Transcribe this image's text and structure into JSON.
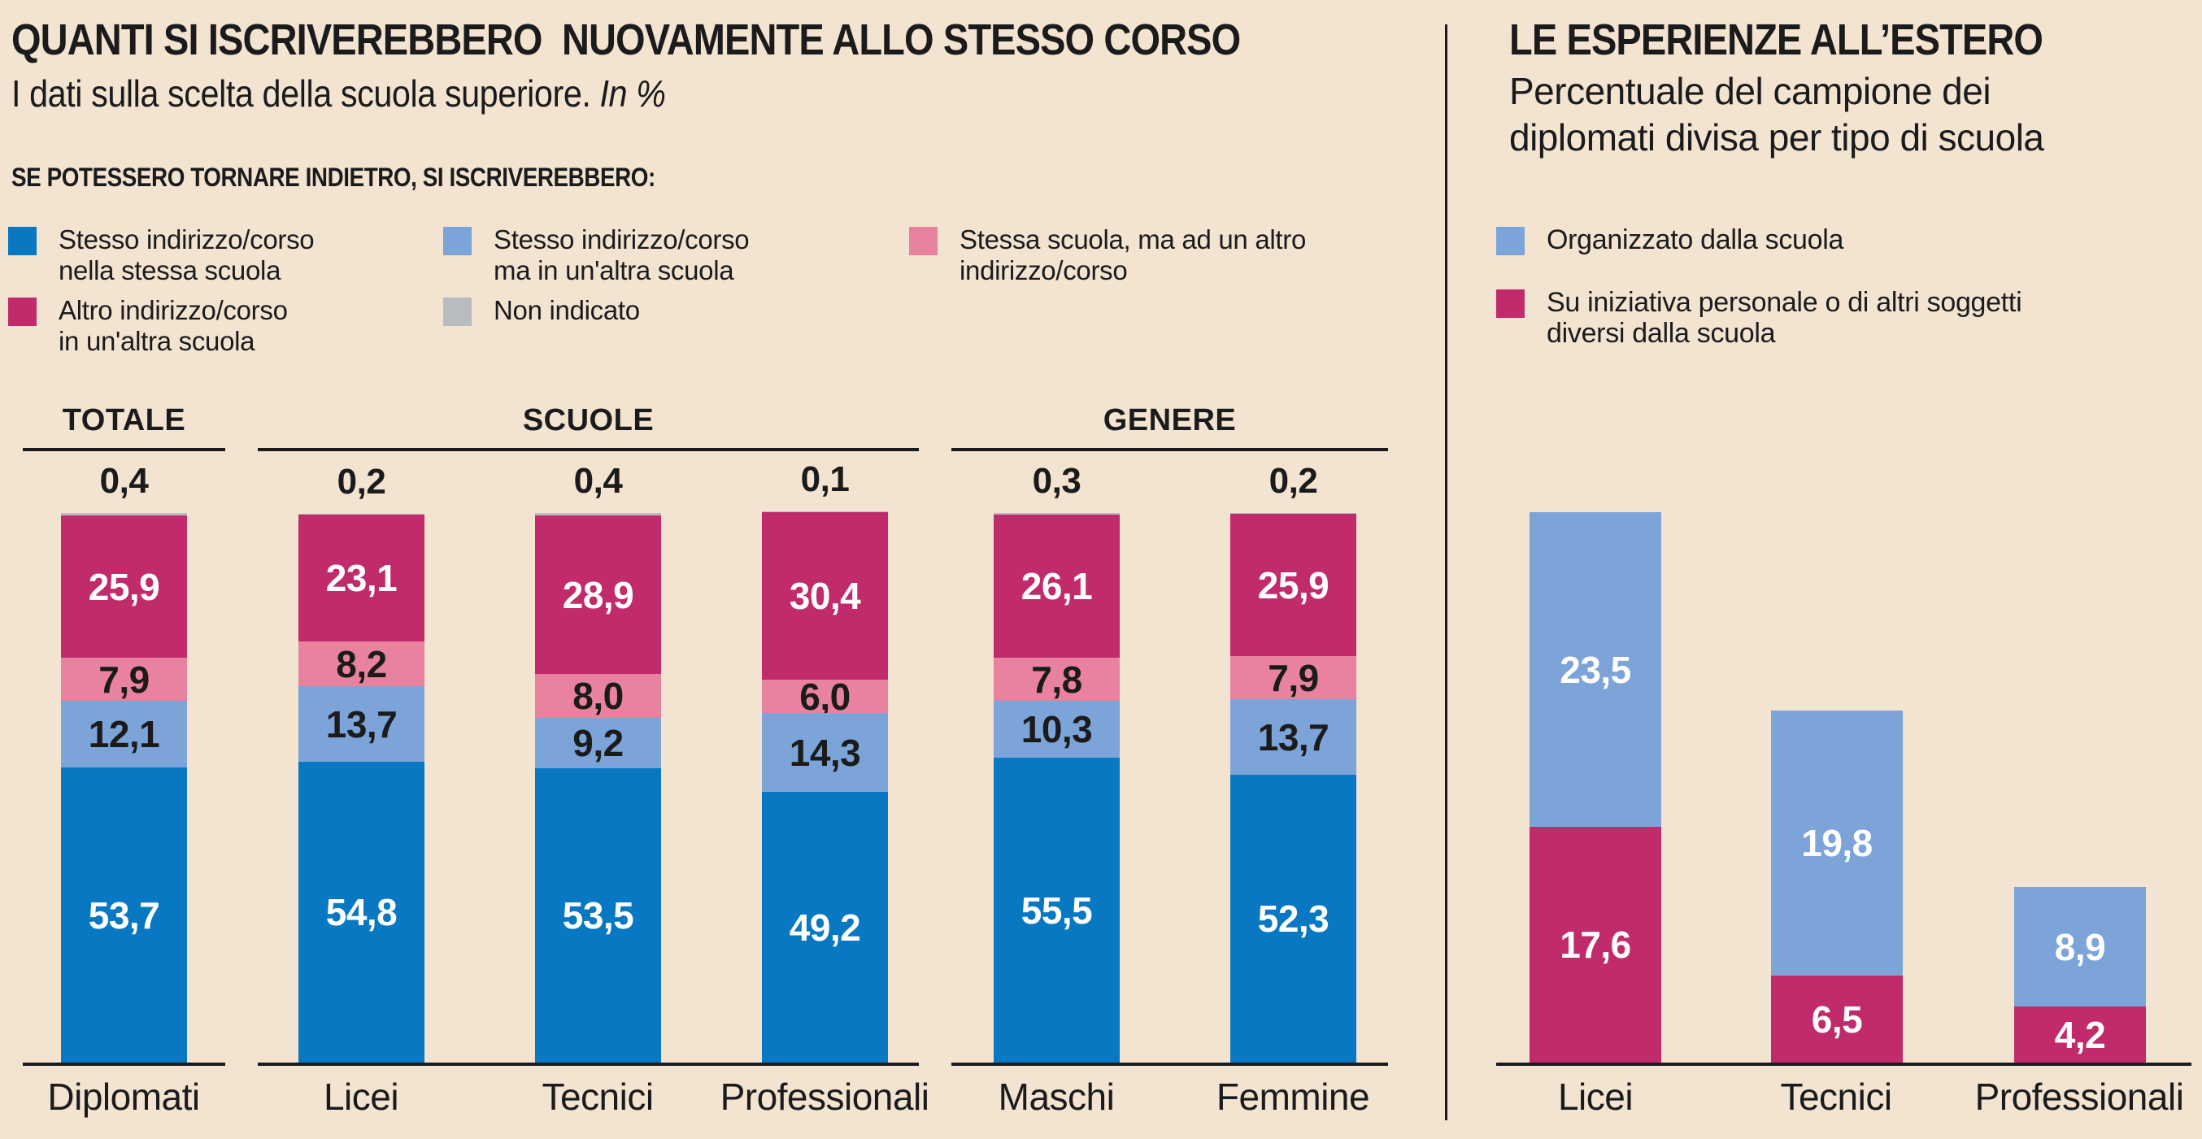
{
  "background_color": "#F3E3D1",
  "text_color": "#1B1B1B",
  "left_panel": {
    "title": "QUANTI SI ISCRIVEREBBERO  NUOVAMENTE ALLO STESSO CORSO",
    "subtitle": "I dati sulla scelta della scuola superiore.",
    "subtitle_note": "In %",
    "question": "SE POTESSERO TORNARE INDIETRO, SI ISCRIVEREBBERO:",
    "legend": [
      {
        "label": "Stesso indirizzo/corso\nnella stessa scuola",
        "color": "#0778C1"
      },
      {
        "label": "Stesso indirizzo/corso\nma in un'altra scuola",
        "color": "#7CA4D8"
      },
      {
        "label": "Stessa scuola, ma ad un altro\nindirizzo/corso",
        "color": "#E8829F"
      },
      {
        "label": "Altro indirizzo/corso\nin un'altra scuola",
        "color": "#C12B6B"
      },
      {
        "label": "Non indicato",
        "color": "#B9BCBE"
      }
    ],
    "groups": [
      {
        "label": "TOTALE"
      },
      {
        "label": "SCUOLE"
      },
      {
        "label": "GENERE"
      }
    ],
    "bars": [
      {
        "category": "Diplomati",
        "top": "0,4",
        "labels": {
          "magenta": "25,9",
          "pink": "7,9",
          "light_blue": "12,1",
          "blue": "53,7"
        }
      },
      {
        "category": "Licei",
        "top": "0,2",
        "labels": {
          "magenta": "23,1",
          "pink": "8,2",
          "light_blue": "13,7",
          "blue": "54,8"
        }
      },
      {
        "category": "Tecnici",
        "top": "0,4",
        "labels": {
          "magenta": "28,9",
          "pink": "8,0",
          "light_blue": "9,2",
          "blue": "53,5"
        }
      },
      {
        "category": "Professionali",
        "top": "0,1",
        "labels": {
          "magenta": "30,4",
          "pink": "6,0",
          "light_blue": "14,3",
          "blue": "49,2"
        }
      },
      {
        "category": "Maschi",
        "top": "0,3",
        "labels": {
          "magenta": "26,1",
          "pink": "7,8",
          "light_blue": "10,3",
          "blue": "55,5"
        }
      },
      {
        "category": "Femmine",
        "top": "0,2",
        "labels": {
          "magenta": "25,9",
          "pink": "7,9",
          "light_blue": "13,7",
          "blue": "52,3"
        }
      }
    ]
  },
  "right_panel": {
    "title": "LE ESPERIENZE ALL’ESTERO",
    "subtitle": "Percentuale del campione dei\ndiplomati divisa per tipo di scuola",
    "legend": [
      {
        "label": "Organizzato dalla scuola",
        "color": "#7CA4D8"
      },
      {
        "label": "Su iniziativa personale o di altri soggetti\ndiversi dalla scuola",
        "color": "#C12B6B"
      }
    ],
    "bars": [
      {
        "category": "Licei",
        "labels": {
          "school": "23,5",
          "personal": "17,6"
        }
      },
      {
        "category": "Tecnici",
        "labels": {
          "school": "19,8",
          "personal": "6,5"
        }
      },
      {
        "category": "Professionali",
        "labels": {
          "school": "8,9",
          "personal": "4,2"
        }
      }
    ]
  },
  "chart_data": [
    {
      "type": "bar",
      "subtype": "stacked-vertical",
      "title": "QUANTI SI ISCRIVEREBBERO NUOVAMENTE ALLO STESSO CORSO",
      "subtitle": "I dati sulla scelta della scuola superiore. In %",
      "unit": "%",
      "ylim": [
        0,
        100
      ],
      "grid": false,
      "legend_position": "top",
      "categories": [
        "Diplomati",
        "Licei",
        "Tecnici",
        "Professionali",
        "Maschi",
        "Femmine"
      ],
      "groups": [
        {
          "label": "TOTALE",
          "categories": [
            "Diplomati"
          ]
        },
        {
          "label": "SCUOLE",
          "categories": [
            "Licei",
            "Tecnici",
            "Professionali"
          ]
        },
        {
          "label": "GENERE",
          "categories": [
            "Maschi",
            "Femmine"
          ]
        }
      ],
      "series": [
        {
          "name": "Stesso indirizzo/corso nella stessa scuola",
          "color": "#0778C1",
          "values": [
            53.7,
            54.8,
            53.5,
            49.2,
            55.5,
            52.3
          ]
        },
        {
          "name": "Stesso indirizzo/corso ma in un'altra scuola",
          "color": "#7CA4D8",
          "values": [
            12.1,
            13.7,
            9.2,
            14.3,
            10.3,
            13.7
          ]
        },
        {
          "name": "Stessa scuola, ma ad un altro indirizzo/corso",
          "color": "#E8829F",
          "values": [
            7.9,
            8.2,
            8.0,
            6.0,
            7.8,
            7.9
          ]
        },
        {
          "name": "Altro indirizzo/corso in un'altra scuola",
          "color": "#C12B6B",
          "values": [
            25.9,
            23.1,
            28.9,
            30.4,
            26.1,
            25.9
          ]
        },
        {
          "name": "Non indicato",
          "color": "#B9BCBE",
          "values": [
            0.4,
            0.2,
            0.4,
            0.1,
            0.3,
            0.2
          ]
        }
      ]
    },
    {
      "type": "bar",
      "subtype": "stacked-vertical",
      "title": "LE ESPERIENZE ALL’ESTERO",
      "subtitle": "Percentuale del campione dei diplomati divisa per tipo di scuola",
      "unit": "%",
      "grid": false,
      "legend_position": "top",
      "categories": [
        "Licei",
        "Tecnici",
        "Professionali"
      ],
      "series": [
        {
          "name": "Organizzato dalla scuola",
          "color": "#7CA4D8",
          "values": [
            23.5,
            19.8,
            8.9
          ]
        },
        {
          "name": "Su iniziativa personale o di altri soggetti diversi dalla scuola",
          "color": "#C12B6B",
          "values": [
            17.6,
            6.5,
            4.2
          ]
        }
      ]
    }
  ]
}
